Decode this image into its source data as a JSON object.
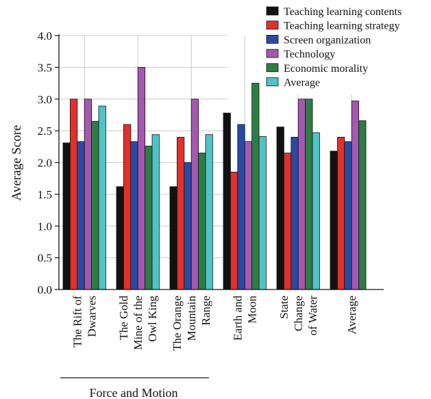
{
  "chart_data": {
    "type": "bar",
    "ylabel": "Average Score",
    "ylim": [
      0,
      4.0
    ],
    "yticks": [
      "0.0",
      "0.5",
      "1.0",
      "1.5",
      "2.0",
      "2.5",
      "3.0",
      "3.5",
      "4.0"
    ],
    "grid": true,
    "legend_position": "top-right",
    "categories": [
      [
        "The Rift of",
        "Dwarves"
      ],
      [
        "The Gold",
        "Mine of the",
        "Owl King"
      ],
      [
        "The Orange",
        "Mountain",
        "Range"
      ],
      [
        "Earth and",
        "Moon"
      ],
      [
        "State",
        "Change",
        "of Water"
      ],
      [
        "Average"
      ]
    ],
    "group_label": "Force and Motion",
    "series": [
      {
        "name": "Teaching learning contents",
        "color": "#111111",
        "values": [
          2.31,
          1.62,
          1.62,
          2.78,
          2.56,
          2.18
        ]
      },
      {
        "name": "Teaching learning strategy",
        "color": "#e0312b",
        "values": [
          3.0,
          2.6,
          2.4,
          1.85,
          2.15,
          2.4
        ]
      },
      {
        "name": "Screen organization",
        "color": "#2b4aa3",
        "values": [
          2.33,
          2.33,
          2.0,
          2.6,
          2.4,
          2.33
        ]
      },
      {
        "name": "Technology",
        "color": "#a558b0",
        "values": [
          3.0,
          3.5,
          3.0,
          2.33,
          3.0,
          2.97
        ]
      },
      {
        "name": "Economic morality",
        "color": "#2e7d45",
        "values": [
          2.65,
          2.26,
          2.15,
          3.25,
          3.0,
          2.66
        ]
      },
      {
        "name": "Average",
        "color": "#4fc3c8",
        "values": [
          2.89,
          2.44,
          2.44,
          2.41,
          2.47,
          0
        ]
      }
    ]
  }
}
